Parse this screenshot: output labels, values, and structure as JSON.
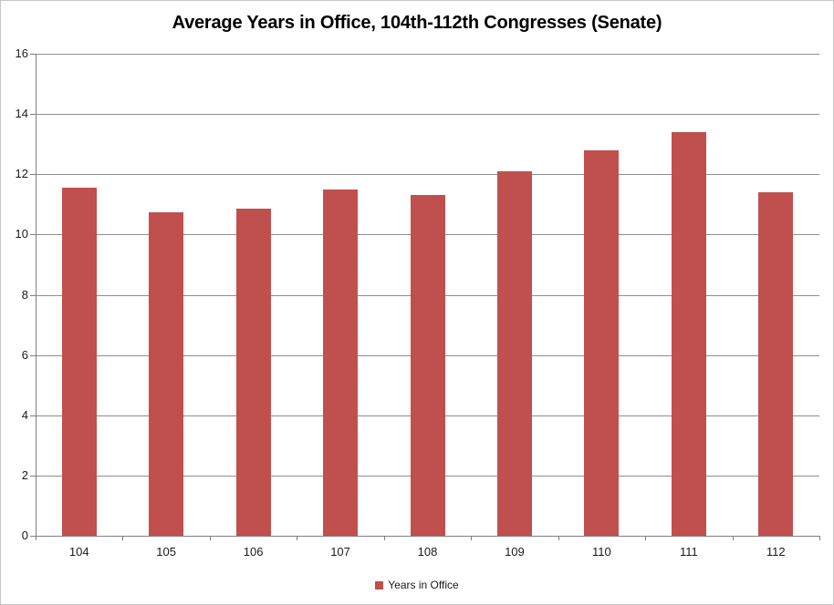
{
  "chart_data": {
    "type": "bar",
    "title": "Average Years in Office, 104th-112th Congresses (Senate)",
    "categories": [
      "104",
      "105",
      "106",
      "107",
      "108",
      "109",
      "110",
      "111",
      "112"
    ],
    "series": [
      {
        "name": "Years in Office",
        "values": [
          11.55,
          10.75,
          10.85,
          11.5,
          11.3,
          12.1,
          12.8,
          13.4,
          11.4
        ]
      }
    ],
    "xlabel": "",
    "ylabel": "",
    "ylim": [
      0,
      16
    ],
    "ytick_step": 2,
    "grid": true,
    "legend_position": "bottom"
  },
  "colors": {
    "bar": "#C0504D",
    "gridline": "#8E8E8E",
    "axis": "#7F7F7F",
    "text": "#1A1A1A",
    "border": "#C6C6C6",
    "background": "#FFFFFF"
  }
}
